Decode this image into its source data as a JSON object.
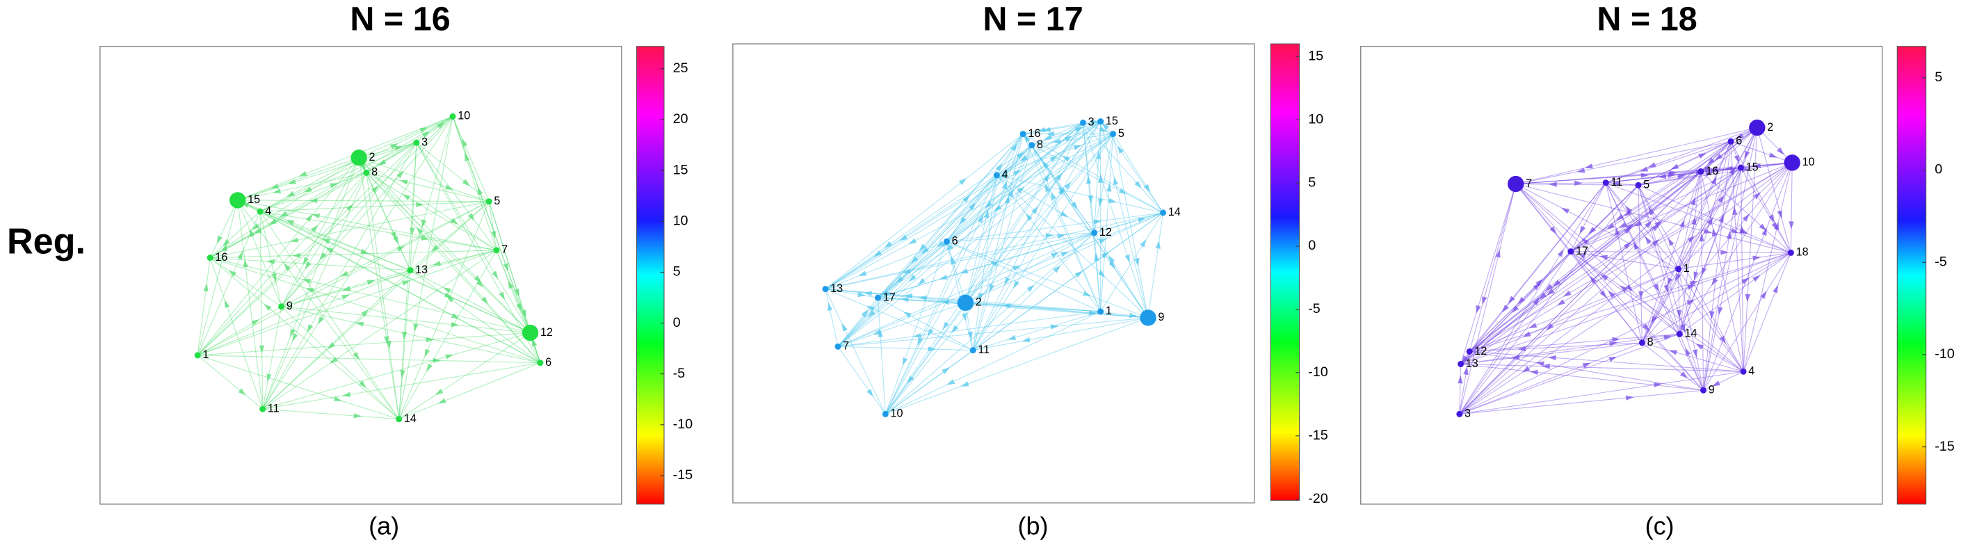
{
  "row_label": "Reg.",
  "panels": [
    {
      "title": "N = 16",
      "caption": "(a)",
      "nodes": [
        "1",
        "2",
        "3",
        "4",
        "5",
        "6",
        "7",
        "8",
        "9",
        "10",
        "11",
        "12",
        "13",
        "14",
        "15",
        "16"
      ],
      "colorbar": {
        "lim": [
          -17.8,
          27.2
        ],
        "ticks": [
          25,
          20,
          15,
          10,
          5,
          0,
          -5,
          -10,
          -15
        ]
      }
    },
    {
      "title": "N = 17",
      "caption": "(b)",
      "nodes": [
        "1",
        "2",
        "3",
        "4",
        "5",
        "6",
        "7",
        "8",
        "9",
        "10",
        "11",
        "12",
        "13",
        "14",
        "15",
        "16",
        "17"
      ],
      "colorbar": {
        "lim": [
          -20.1,
          16
        ],
        "ticks": [
          15,
          10,
          5,
          0,
          -5,
          -10,
          -15,
          -20
        ]
      }
    },
    {
      "title": "N = 18",
      "caption": "(c)",
      "nodes": [
        "1",
        "2",
        "3",
        "4",
        "5",
        "6",
        "7",
        "8",
        "9",
        "10",
        "11",
        "12",
        "13",
        "14",
        "15",
        "16",
        "17",
        "18"
      ],
      "colorbar": {
        "lim": [
          -18.1,
          6.7
        ],
        "ticks": [
          5,
          0,
          -5,
          -10,
          -15
        ]
      }
    }
  ]
}
